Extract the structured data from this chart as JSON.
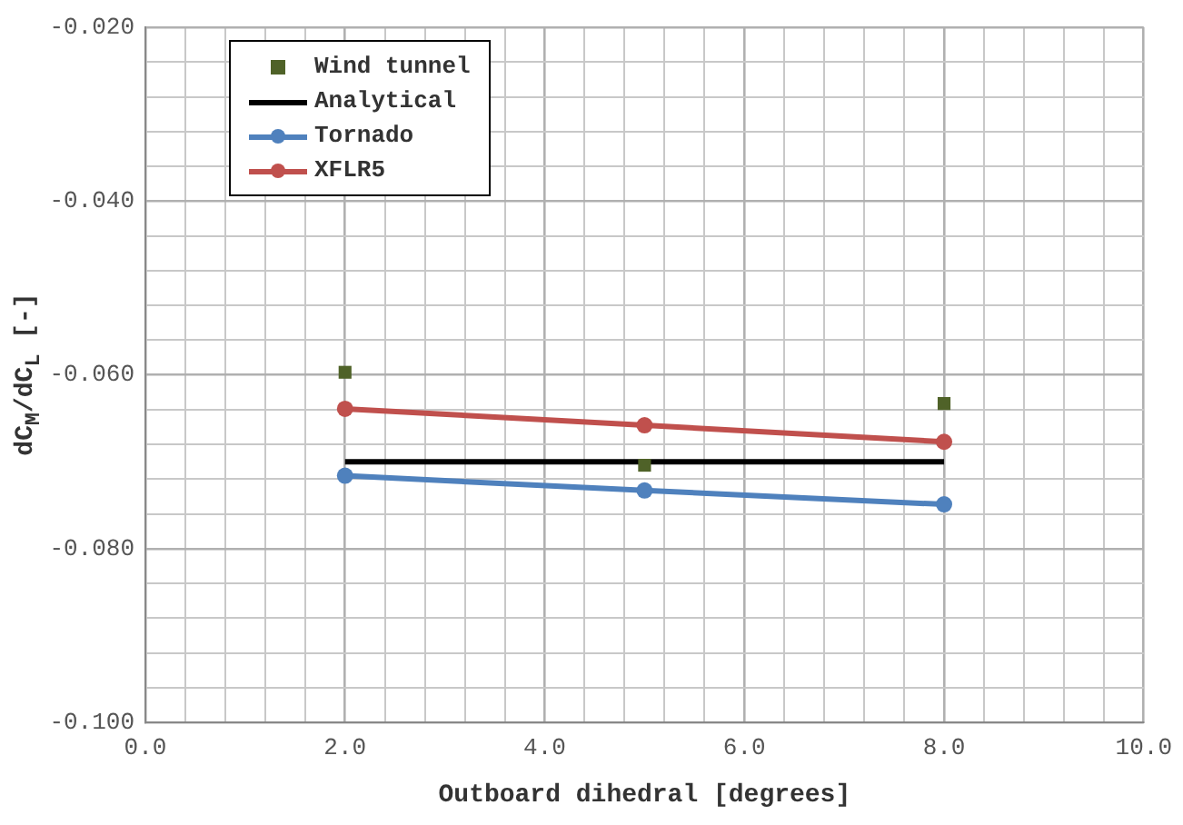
{
  "chart_data": {
    "type": "line",
    "xlabel": "Outboard dihedral [degrees]",
    "ylabel": "dC$_{M}$/dC$_{L}$ [-]",
    "xlim": [
      0,
      10
    ],
    "ylim": [
      -0.1,
      -0.02
    ],
    "xticks": [
      {
        "value": 0,
        "label": "0.0"
      },
      {
        "value": 0.4,
        "label": null
      },
      {
        "value": 0.8,
        "label": null
      },
      {
        "value": 1.2,
        "label": null
      },
      {
        "value": 1.6,
        "label": null
      },
      {
        "value": 2,
        "label": "2.0"
      },
      {
        "value": 2.4,
        "label": null
      },
      {
        "value": 2.8,
        "label": null
      },
      {
        "value": 3.2,
        "label": null
      },
      {
        "value": 3.6,
        "label": null
      },
      {
        "value": 4,
        "label": "4.0"
      },
      {
        "value": 4.4,
        "label": null
      },
      {
        "value": 4.8,
        "label": null
      },
      {
        "value": 5.2,
        "label": null
      },
      {
        "value": 5.6,
        "label": null
      },
      {
        "value": 6,
        "label": "6.0"
      },
      {
        "value": 6.4,
        "label": null
      },
      {
        "value": 6.8,
        "label": null
      },
      {
        "value": 7.2,
        "label": null
      },
      {
        "value": 7.6,
        "label": null
      },
      {
        "value": 8,
        "label": "8.0"
      },
      {
        "value": 8.4,
        "label": null
      },
      {
        "value": 8.8,
        "label": null
      },
      {
        "value": 9.2,
        "label": null
      },
      {
        "value": 9.6,
        "label": null
      },
      {
        "value": 10,
        "label": "10.0"
      }
    ],
    "yticks": [
      {
        "value": -0.1,
        "label": "-0.100"
      },
      {
        "value": -0.096,
        "label": null
      },
      {
        "value": -0.092,
        "label": null
      },
      {
        "value": -0.088,
        "label": null
      },
      {
        "value": -0.084,
        "label": null
      },
      {
        "value": -0.08,
        "label": "-0.080"
      },
      {
        "value": -0.076,
        "label": null
      },
      {
        "value": -0.072,
        "label": null
      },
      {
        "value": -0.068,
        "label": null
      },
      {
        "value": -0.064,
        "label": null
      },
      {
        "value": -0.06,
        "label": "-0.060"
      },
      {
        "value": -0.056,
        "label": null
      },
      {
        "value": -0.052,
        "label": null
      },
      {
        "value": -0.048,
        "label": null
      },
      {
        "value": -0.044,
        "label": null
      },
      {
        "value": -0.04,
        "label": "-0.040"
      },
      {
        "value": -0.036,
        "label": null
      },
      {
        "value": -0.032,
        "label": null
      },
      {
        "value": -0.028,
        "label": null
      },
      {
        "value": -0.024,
        "label": null
      },
      {
        "value": -0.02,
        "label": "-0.020"
      }
    ],
    "grid": true,
    "legend": "top left",
    "marker": "circle",
    "series": [
      {
        "name": "Wind tunnel",
        "type": "scatter",
        "marker": "square",
        "color": "#4f6228",
        "x": [
          2,
          5,
          8
        ],
        "values": [
          -0.0597,
          -0.0704,
          -0.0633
        ]
      },
      {
        "name": "Analytical",
        "type": "line",
        "marker": "none",
        "color": "#000000",
        "x": [
          2,
          8
        ],
        "values": [
          -0.07,
          -0.07
        ]
      },
      {
        "name": "Tornado",
        "color": "#4f81bd",
        "x": [
          2,
          5,
          8
        ],
        "values": [
          -0.0716,
          -0.0733,
          -0.0749
        ]
      },
      {
        "name": "XFLR5",
        "color": "#c0504d",
        "x": [
          2,
          5,
          8
        ],
        "values": [
          -0.0639,
          -0.0658,
          -0.0677
        ]
      }
    ]
  }
}
